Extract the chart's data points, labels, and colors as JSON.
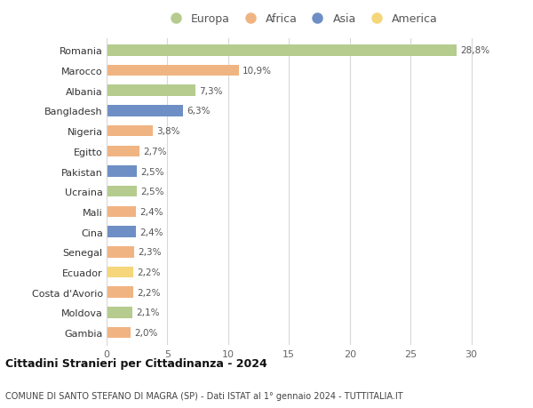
{
  "countries": [
    "Romania",
    "Marocco",
    "Albania",
    "Bangladesh",
    "Nigeria",
    "Egitto",
    "Pakistan",
    "Ucraina",
    "Mali",
    "Cina",
    "Senegal",
    "Ecuador",
    "Costa d'Avorio",
    "Moldova",
    "Gambia"
  ],
  "values": [
    28.8,
    10.9,
    7.3,
    6.3,
    3.8,
    2.7,
    2.5,
    2.5,
    2.4,
    2.4,
    2.3,
    2.2,
    2.2,
    2.1,
    2.0
  ],
  "labels": [
    "28,8%",
    "10,9%",
    "7,3%",
    "6,3%",
    "3,8%",
    "2,7%",
    "2,5%",
    "2,5%",
    "2,4%",
    "2,4%",
    "2,3%",
    "2,2%",
    "2,2%",
    "2,1%",
    "2,0%"
  ],
  "continents": [
    "Europa",
    "Africa",
    "Europa",
    "Asia",
    "Africa",
    "Africa",
    "Asia",
    "Europa",
    "Africa",
    "Asia",
    "Africa",
    "America",
    "Africa",
    "Europa",
    "Africa"
  ],
  "continent_colors": {
    "Europa": "#b5cc8e",
    "Africa": "#f0b482",
    "Asia": "#6d8fc5",
    "America": "#f5d67a"
  },
  "legend_order": [
    "Europa",
    "Africa",
    "Asia",
    "America"
  ],
  "title1": "Cittadini Stranieri per Cittadinanza - 2024",
  "title2": "COMUNE DI SANTO STEFANO DI MAGRA (SP) - Dati ISTAT al 1° gennaio 2024 - TUTTITALIA.IT",
  "xlim": [
    0,
    32
  ],
  "xticks": [
    0,
    5,
    10,
    15,
    20,
    25,
    30
  ],
  "background_color": "#ffffff",
  "grid_color": "#d8d8d8",
  "bar_height": 0.55
}
